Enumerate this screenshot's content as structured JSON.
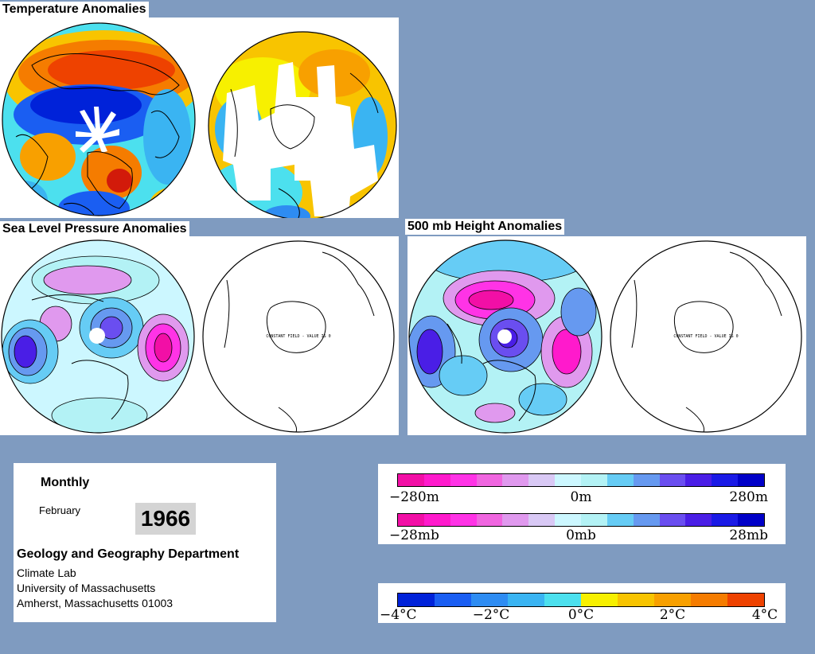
{
  "titles": {
    "temperature": "Temperature Anomalies",
    "slp": "Sea Level Pressure Anomalies",
    "height": "500 mb Height Anomalies"
  },
  "map_notes": {
    "slp_right": "CONSTANT FIELD - VALUE IS 0",
    "height_right": "CONSTANT FIELD - VALUE IS 0"
  },
  "info": {
    "period": "Monthly",
    "month": "February",
    "year": "1966",
    "department": "Geology and Geography Department",
    "lab": "Climate Lab",
    "university": "University of Massachusetts",
    "address": "Amherst, Massachusetts 01003"
  },
  "colorbars": {
    "height": {
      "left": "−280m",
      "mid": "0m",
      "right": "280m"
    },
    "slp": {
      "left": "−28mb",
      "mid": "0mb",
      "right": "28mb"
    },
    "temp": {
      "labels": [
        "−4°C",
        "−2°C",
        "0°C",
        "2°C",
        "4°C"
      ]
    }
  },
  "colors": {
    "background": "#7f9bc0",
    "diverging_pressure": [
      "#f20fa6",
      "#ff1acc",
      "#ff33e6",
      "#f066e0",
      "#e099ee",
      "#d9c9f5",
      "#ccf7ff",
      "#b3f2f5",
      "#66ccf5",
      "#6699f0",
      "#6a4ef0",
      "#4a1ee6",
      "#1a1ae6",
      "#0000c8"
    ],
    "temperature": [
      "#0022d9",
      "#1a5ef2",
      "#2e8cf2",
      "#3ab4f2",
      "#4ce0ee",
      "#f7f000",
      "#f8c400",
      "#f8a000",
      "#f57c00",
      "#ee4200"
    ]
  }
}
